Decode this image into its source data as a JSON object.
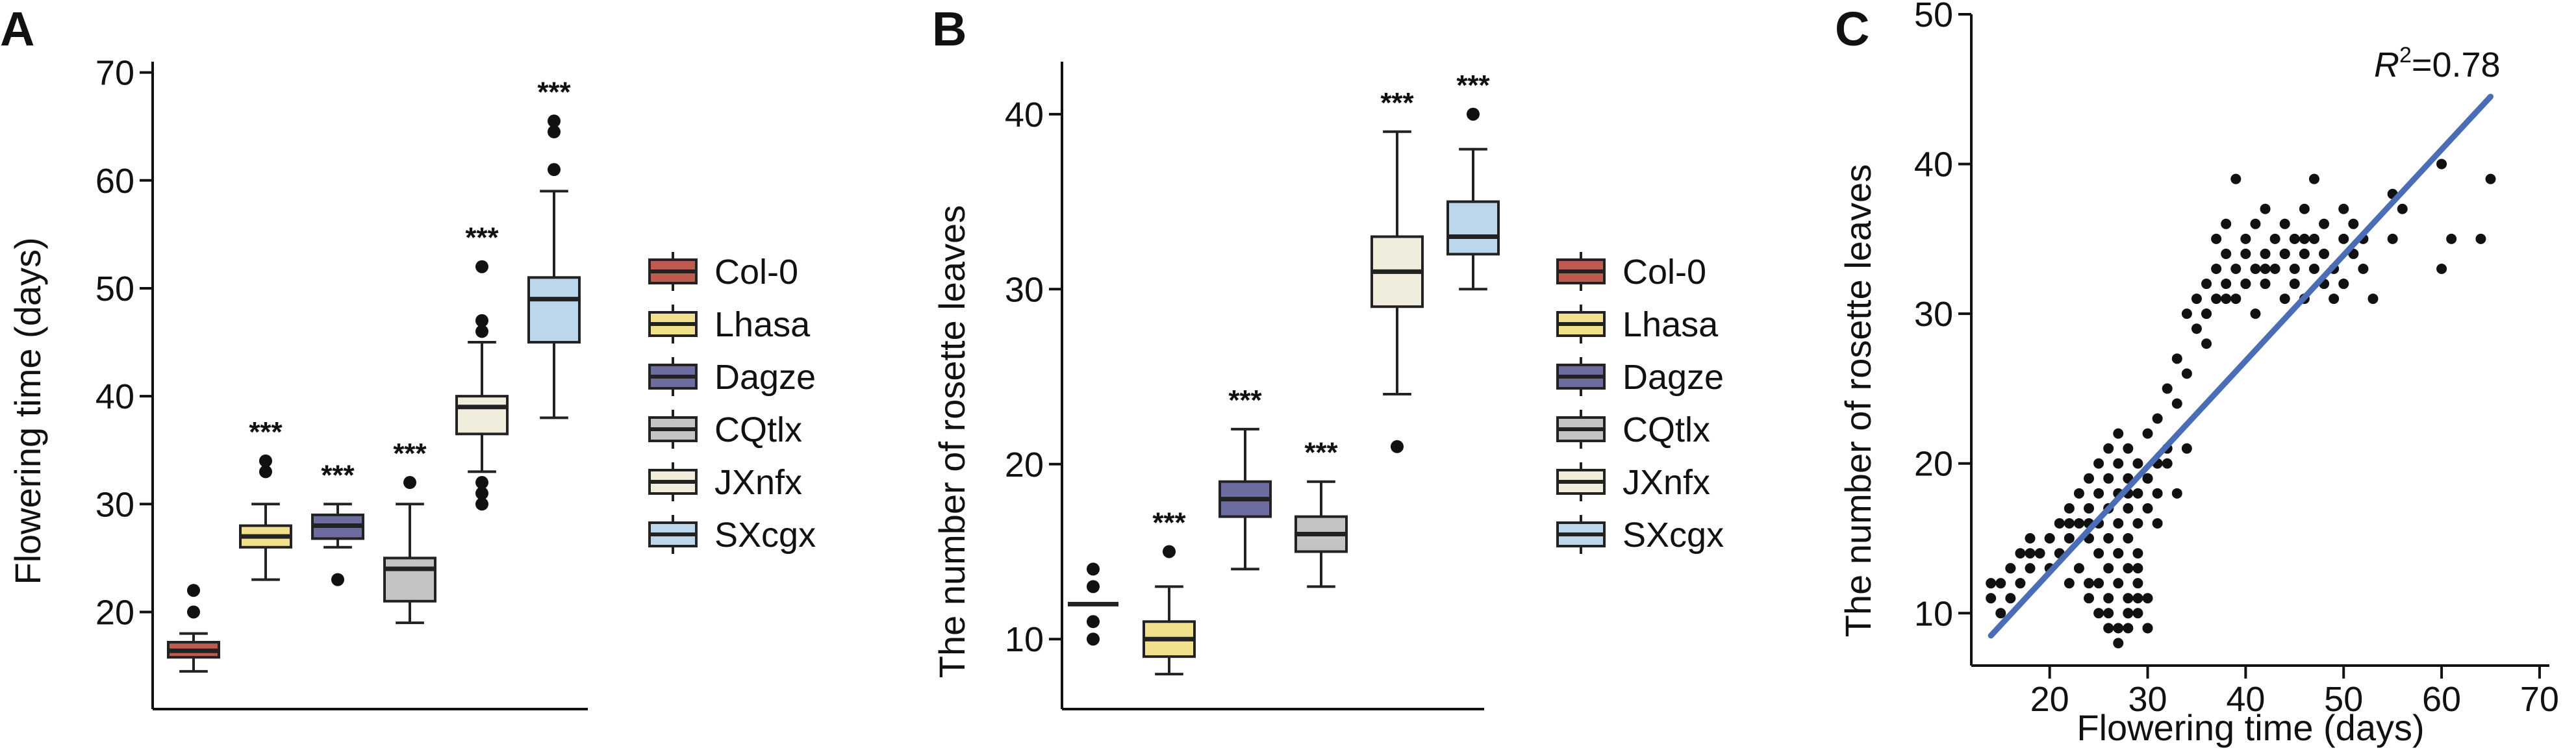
{
  "colors": {
    "Col-0": "#bf5a50",
    "Lhasa": "#f1e08c",
    "Dagze": "#6c6c9e",
    "CQtlx": "#c3c3c3",
    "JXnfx": "#f1eddd",
    "SXcgx": "#bcd6ec",
    "fit_line": "#4a6db5",
    "points": "#111111"
  },
  "chart_data": [
    {
      "panel": "A",
      "type": "box",
      "ylabel": "Flowering time (days)",
      "yticks": [
        20,
        30,
        40,
        50,
        60,
        70
      ],
      "ylim": [
        11,
        71
      ],
      "significance": "***",
      "legend": [
        "Col-0",
        "Lhasa",
        "Dagze",
        "CQtlx",
        "JXnfx",
        "SXcgx"
      ],
      "legend_position": "right",
      "groups": [
        {
          "name": "Col-0",
          "q1": 15.8,
          "median": 16.4,
          "q3": 17.2,
          "whisker_low": 14.5,
          "whisker_high": 18.0,
          "outliers": [
            20.0,
            22.0
          ],
          "sig": ""
        },
        {
          "name": "Lhasa",
          "q1": 26.0,
          "median": 27.0,
          "q3": 28.0,
          "whisker_low": 23.0,
          "whisker_high": 30.0,
          "outliers": [
            33.0,
            34.0
          ],
          "sig": "***"
        },
        {
          "name": "Dagze",
          "q1": 26.8,
          "median": 28.0,
          "q3": 29.0,
          "whisker_low": 26.0,
          "whisker_high": 30.0,
          "outliers": [
            23.0
          ],
          "sig": "***"
        },
        {
          "name": "CQtlx",
          "q1": 21.0,
          "median": 24.0,
          "q3": 25.0,
          "whisker_low": 19.0,
          "whisker_high": 30.0,
          "outliers": [
            32.0
          ],
          "sig": "***"
        },
        {
          "name": "JXnfx",
          "q1": 36.5,
          "median": 39.0,
          "q3": 40.0,
          "whisker_low": 33.0,
          "whisker_high": 45.0,
          "outliers": [
            30.0,
            31.0,
            32.0,
            46.0,
            47.0,
            52.0
          ],
          "sig": "***"
        },
        {
          "name": "SXcgx",
          "q1": 45.0,
          "median": 49.0,
          "q3": 51.0,
          "whisker_low": 38.0,
          "whisker_high": 59.0,
          "outliers": [
            61.0,
            64.5,
            65.5
          ],
          "sig": "***"
        }
      ]
    },
    {
      "panel": "B",
      "type": "box",
      "ylabel": "The number of rosette leaves",
      "yticks": [
        10,
        20,
        30,
        40
      ],
      "ylim": [
        6,
        43
      ],
      "significance": "***",
      "legend": [
        "Col-0",
        "Lhasa",
        "Dagze",
        "CQtlx",
        "JXnfx",
        "SXcgx"
      ],
      "legend_position": "right",
      "groups": [
        {
          "name": "Col-0",
          "q1": 12.0,
          "median": 12.0,
          "q3": 12.0,
          "whisker_low": 12.0,
          "whisker_high": 12.0,
          "outliers": [
            10.0,
            11.0,
            13.0,
            14.0
          ],
          "sig": ""
        },
        {
          "name": "Lhasa",
          "q1": 9.0,
          "median": 10.0,
          "q3": 11.0,
          "whisker_low": 8.0,
          "whisker_high": 13.0,
          "outliers": [
            15.0
          ],
          "sig": "***"
        },
        {
          "name": "Dagze",
          "q1": 17.0,
          "median": 18.0,
          "q3": 19.0,
          "whisker_low": 14.0,
          "whisker_high": 22.0,
          "outliers": [],
          "sig": "***"
        },
        {
          "name": "CQtlx",
          "q1": 15.0,
          "median": 16.0,
          "q3": 17.0,
          "whisker_low": 13.0,
          "whisker_high": 19.0,
          "outliers": [],
          "sig": "***"
        },
        {
          "name": "JXnfx",
          "q1": 29.0,
          "median": 31.0,
          "q3": 33.0,
          "whisker_low": 24.0,
          "whisker_high": 39.0,
          "outliers": [
            21.0
          ],
          "sig": "***"
        },
        {
          "name": "SXcgx",
          "q1": 32.0,
          "median": 33.0,
          "q3": 35.0,
          "whisker_low": 30.0,
          "whisker_high": 38.0,
          "outliers": [
            40.0
          ],
          "sig": "***"
        }
      ]
    },
    {
      "panel": "C",
      "type": "scatter",
      "xlabel": "Flowering time (days)",
      "ylabel": "The number of rosette leaves",
      "xticks": [
        20,
        30,
        40,
        50,
        60,
        70
      ],
      "yticks": [
        10,
        20,
        30,
        40,
        50
      ],
      "xlim": [
        12,
        71
      ],
      "ylim": [
        6.5,
        50
      ],
      "annotation_label": "R",
      "annotation_sup": "2",
      "annotation_value": "=0.78",
      "r_squared": 0.78,
      "fit": {
        "x": [
          14,
          65
        ],
        "y": [
          8.5,
          44.5
        ]
      },
      "x": [
        14,
        15,
        15,
        16,
        16,
        17,
        17,
        18,
        18,
        19,
        20,
        20,
        21,
        21,
        22,
        22,
        22,
        23,
        23,
        23,
        24,
        24,
        24,
        24,
        25,
        25,
        25,
        25,
        25,
        26,
        26,
        26,
        26,
        26,
        26,
        27,
        27,
        27,
        27,
        27,
        27,
        27,
        28,
        28,
        28,
        28,
        28,
        28,
        28,
        29,
        29,
        29,
        29,
        29,
        29,
        30,
        30,
        30,
        30,
        31,
        31,
        31,
        32,
        32,
        33,
        33,
        34,
        34,
        35,
        35,
        36,
        36,
        36,
        37,
        37,
        37,
        38,
        38,
        38,
        39,
        39,
        39,
        40,
        40,
        40,
        41,
        41,
        41,
        42,
        42,
        42,
        43,
        43,
        44,
        44,
        44,
        45,
        45,
        45,
        46,
        46,
        46,
        47,
        47,
        47,
        48,
        48,
        49,
        49,
        50,
        50,
        51,
        51,
        52,
        52,
        53,
        55,
        55,
        56,
        60,
        60,
        61,
        64,
        65,
        14,
        16,
        18,
        20,
        22,
        24,
        26,
        28,
        30,
        32,
        34,
        36,
        38,
        40,
        42,
        44,
        46,
        48,
        50,
        25,
        26,
        27,
        28,
        29,
        30,
        24,
        26,
        28,
        30,
        27,
        29,
        31,
        33
      ],
      "y": [
        11,
        12,
        10,
        13,
        11,
        12,
        14,
        13,
        15,
        14,
        15,
        13,
        16,
        14,
        17,
        15,
        12,
        16,
        18,
        13,
        17,
        15,
        11,
        19,
        18,
        14,
        12,
        16,
        20,
        19,
        17,
        15,
        13,
        10,
        21,
        20,
        18,
        16,
        14,
        12,
        9,
        22,
        21,
        19,
        17,
        15,
        13,
        11,
        9,
        20,
        18,
        16,
        14,
        12,
        10,
        22,
        19,
        17,
        11,
        20,
        18,
        23,
        21,
        25,
        24,
        27,
        26,
        30,
        29,
        31,
        28,
        32,
        30,
        33,
        35,
        31,
        34,
        32,
        36,
        33,
        39,
        31,
        35,
        32,
        34,
        33,
        30,
        36,
        34,
        32,
        37,
        35,
        33,
        34,
        31,
        36,
        33,
        35,
        32,
        34,
        31,
        37,
        39,
        33,
        35,
        32,
        34,
        33,
        31,
        35,
        32,
        34,
        36,
        33,
        35,
        31,
        35,
        38,
        37,
        33,
        40,
        35,
        35,
        39,
        12,
        13,
        14,
        15,
        16,
        16,
        17,
        18,
        19,
        20,
        21,
        30,
        31,
        32,
        33,
        34,
        35,
        36,
        37,
        10,
        9,
        8,
        10,
        11,
        9,
        12,
        11,
        10,
        9,
        14,
        13,
        16,
        18
      ],
      "marker_color": "#111111"
    }
  ]
}
